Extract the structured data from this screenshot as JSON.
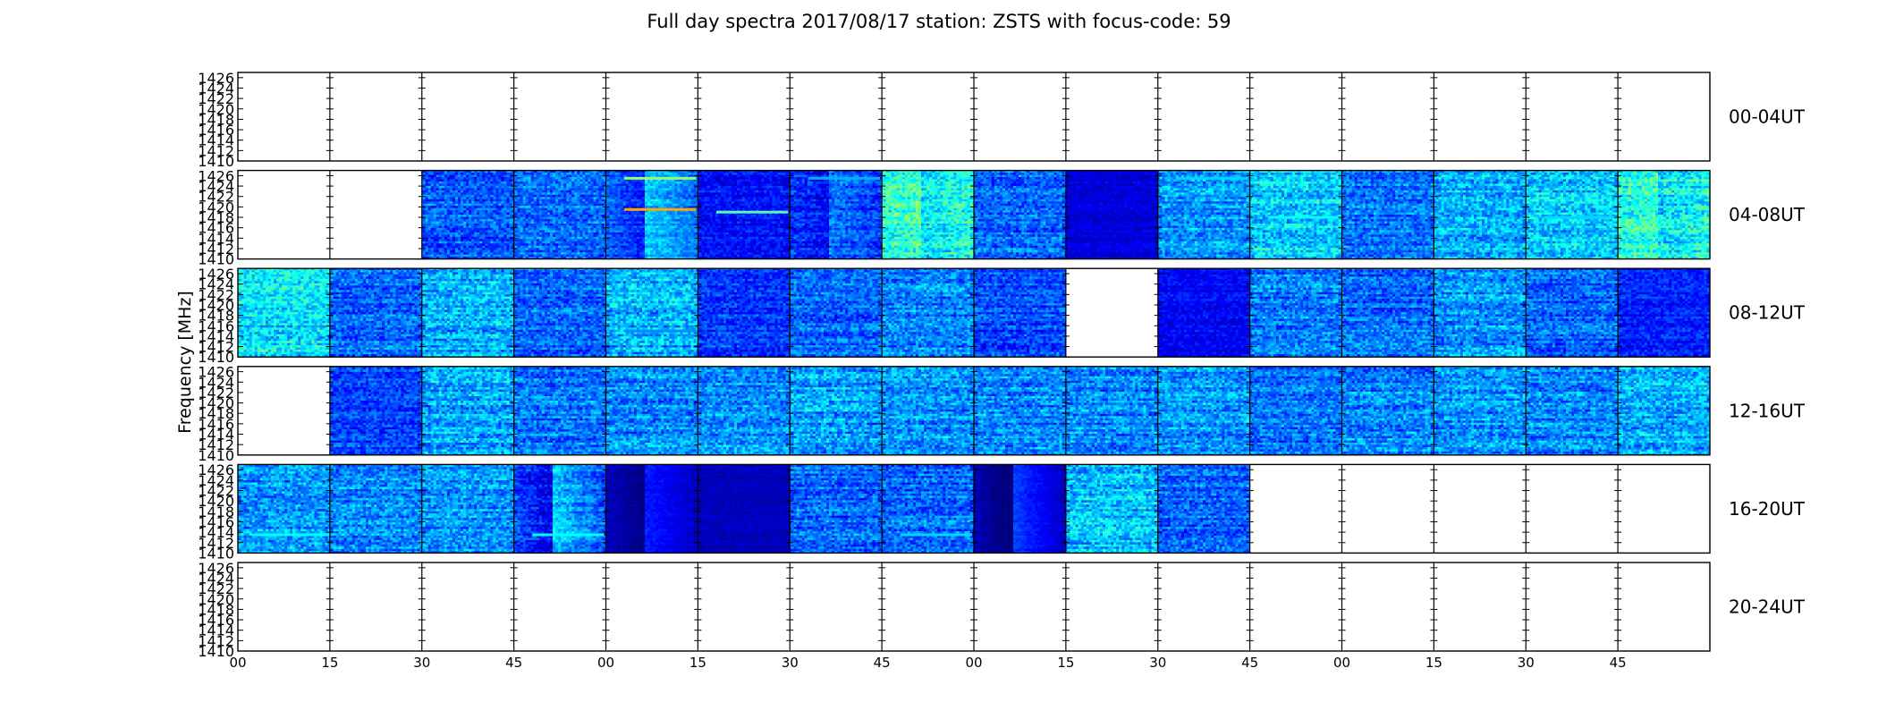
{
  "chart_data": {
    "type": "heatmap",
    "title": "Full day spectra 2017/08/17 station: ZSTS with focus-code: 59",
    "ylabel": "Frequency [MHz]",
    "xlabel": "",
    "yticks": [
      "1426",
      "1424",
      "1422",
      "1420",
      "1418",
      "1416",
      "1414",
      "1412",
      "1410"
    ],
    "ylim": [
      1410,
      1427
    ],
    "xticks": [
      "00",
      "15",
      "30",
      "45",
      "00",
      "15",
      "30",
      "45",
      "00",
      "15",
      "30",
      "45",
      "00",
      "15",
      "30",
      "45"
    ],
    "colormap": [
      "#00007f",
      "#0000ff",
      "#007fff",
      "#00ffff",
      "#7fff7f",
      "#ffff00",
      "#ff7f00"
    ],
    "panels_per_row": 16,
    "minutes_per_panel": 15,
    "rows": [
      {
        "label": "00-04UT",
        "cells": [
          {
            "on": 0
          },
          {
            "on": 0
          },
          {
            "on": 0
          },
          {
            "on": 0
          },
          {
            "on": 0
          },
          {
            "on": 0
          },
          {
            "on": 0
          },
          {
            "on": 0
          },
          {
            "on": 0
          },
          {
            "on": 0
          },
          {
            "on": 0
          },
          {
            "on": 0
          },
          {
            "on": 0
          },
          {
            "on": 0
          },
          {
            "on": 0
          },
          {
            "on": 0
          }
        ]
      },
      {
        "label": "04-08UT",
        "cells": [
          {
            "on": 0
          },
          {
            "on": 0
          },
          {
            "on": 1,
            "level": 0.28,
            "var": 0.14
          },
          {
            "on": 1,
            "level": 0.3,
            "var": 0.14
          },
          {
            "on": 1,
            "level": 0.32,
            "var": 0.1,
            "fade": 0.25,
            "lines": [
              [
                1419.5,
                0.95
              ],
              [
                1425.5,
                0.7
              ]
            ]
          },
          {
            "on": 1,
            "level": 0.18,
            "var": 0.1,
            "lines": [
              [
                1419,
                0.6
              ]
            ]
          },
          {
            "on": 1,
            "level": 0.24,
            "var": 0.12,
            "fade": 0.15,
            "lines": [
              [
                1425.5,
                0.4
              ]
            ]
          },
          {
            "on": 1,
            "level": 0.48,
            "var": 0.16,
            "glow": 0.12
          },
          {
            "on": 1,
            "level": 0.3,
            "var": 0.14
          },
          {
            "on": 1,
            "level": 0.12,
            "var": 0.06
          },
          {
            "on": 1,
            "level": 0.36,
            "var": 0.14,
            "lines": [
              [
                1425.5,
                0.45
              ]
            ]
          },
          {
            "on": 1,
            "level": 0.45,
            "var": 0.16,
            "lines": [
              [
                1418,
                0.5
              ]
            ]
          },
          {
            "on": 1,
            "level": 0.32,
            "var": 0.14
          },
          {
            "on": 1,
            "level": 0.4,
            "var": 0.15
          },
          {
            "on": 1,
            "level": 0.44,
            "var": 0.16,
            "lines": [
              [
                1418,
                0.45
              ]
            ]
          },
          {
            "on": 1,
            "level": 0.47,
            "var": 0.17,
            "glow": 0.12
          }
        ]
      },
      {
        "label": "08-12UT",
        "cells": [
          {
            "on": 1,
            "level": 0.46,
            "var": 0.16
          },
          {
            "on": 1,
            "level": 0.3,
            "var": 0.14
          },
          {
            "on": 1,
            "level": 0.4,
            "var": 0.16
          },
          {
            "on": 1,
            "level": 0.3,
            "var": 0.14
          },
          {
            "on": 1,
            "level": 0.4,
            "var": 0.16,
            "lines": [
              [
                1415,
                0.35
              ]
            ]
          },
          {
            "on": 1,
            "level": 0.24,
            "var": 0.12
          },
          {
            "on": 1,
            "level": 0.3,
            "var": 0.14
          },
          {
            "on": 1,
            "level": 0.34,
            "var": 0.15
          },
          {
            "on": 1,
            "level": 0.26,
            "var": 0.13
          },
          {
            "on": 0
          },
          {
            "on": 1,
            "level": 0.16,
            "var": 0.08
          },
          {
            "on": 1,
            "level": 0.34,
            "var": 0.15
          },
          {
            "on": 1,
            "level": 0.3,
            "var": 0.14
          },
          {
            "on": 1,
            "level": 0.36,
            "var": 0.15
          },
          {
            "on": 1,
            "level": 0.3,
            "var": 0.14
          },
          {
            "on": 1,
            "level": 0.2,
            "var": 0.1
          }
        ]
      },
      {
        "label": "12-16UT",
        "cells": [
          {
            "on": 0
          },
          {
            "on": 1,
            "level": 0.26,
            "var": 0.12
          },
          {
            "on": 1,
            "level": 0.38,
            "var": 0.16
          },
          {
            "on": 1,
            "level": 0.32,
            "var": 0.14
          },
          {
            "on": 1,
            "level": 0.34,
            "var": 0.15
          },
          {
            "on": 1,
            "level": 0.36,
            "var": 0.15
          },
          {
            "on": 1,
            "level": 0.38,
            "var": 0.16
          },
          {
            "on": 1,
            "level": 0.36,
            "var": 0.15
          },
          {
            "on": 1,
            "level": 0.34,
            "var": 0.15
          },
          {
            "on": 1,
            "level": 0.34,
            "var": 0.15
          },
          {
            "on": 1,
            "level": 0.36,
            "var": 0.15
          },
          {
            "on": 1,
            "level": 0.32,
            "var": 0.14
          },
          {
            "on": 1,
            "level": 0.34,
            "var": 0.15
          },
          {
            "on": 1,
            "level": 0.36,
            "var": 0.15
          },
          {
            "on": 1,
            "level": 0.34,
            "var": 0.15
          },
          {
            "on": 1,
            "level": 0.38,
            "var": 0.16
          }
        ]
      },
      {
        "label": "16-20UT",
        "cells": [
          {
            "on": 1,
            "level": 0.36,
            "var": 0.15,
            "lines": [
              [
                1413.5,
                0.5
              ]
            ]
          },
          {
            "on": 1,
            "level": 0.34,
            "var": 0.15
          },
          {
            "on": 1,
            "level": 0.36,
            "var": 0.15
          },
          {
            "on": 1,
            "level": 0.28,
            "var": 0.12,
            "fade": 0.3,
            "lines": [
              [
                1413.5,
                0.5
              ]
            ]
          },
          {
            "on": 1,
            "level": 0.1,
            "var": 0.04,
            "fade": 0.2
          },
          {
            "on": 1,
            "level": 0.08,
            "var": 0.04
          },
          {
            "on": 1,
            "level": 0.3,
            "var": 0.14
          },
          {
            "on": 1,
            "level": 0.3,
            "var": 0.14,
            "lines": [
              [
                1413.5,
                0.45
              ]
            ]
          },
          {
            "on": 1,
            "level": 0.1,
            "var": 0.04,
            "fade": 0.3
          },
          {
            "on": 1,
            "level": 0.42,
            "var": 0.16
          },
          {
            "on": 1,
            "level": 0.3,
            "var": 0.14
          },
          {
            "on": 0
          },
          {
            "on": 0
          },
          {
            "on": 0
          },
          {
            "on": 0
          },
          {
            "on": 0
          }
        ]
      },
      {
        "label": "20-24UT",
        "cells": [
          {
            "on": 0
          },
          {
            "on": 0
          },
          {
            "on": 0
          },
          {
            "on": 0
          },
          {
            "on": 0
          },
          {
            "on": 0
          },
          {
            "on": 0
          },
          {
            "on": 0
          },
          {
            "on": 0
          },
          {
            "on": 0
          },
          {
            "on": 0
          },
          {
            "on": 0
          },
          {
            "on": 0
          },
          {
            "on": 0
          },
          {
            "on": 0
          },
          {
            "on": 0
          }
        ]
      }
    ]
  }
}
